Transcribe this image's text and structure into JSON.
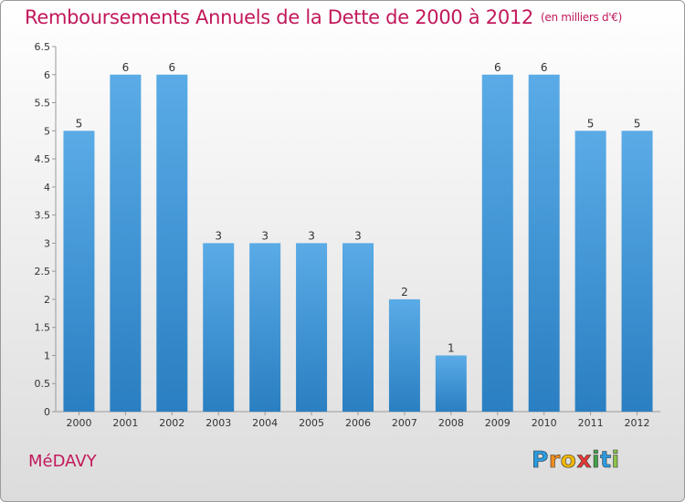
{
  "chart_data": {
    "type": "bar",
    "title": "Remboursements Annuels de la Dette de 2000 à 2012",
    "unit_label": "(en milliers d'€)",
    "categories": [
      "2000",
      "2001",
      "2002",
      "2003",
      "2004",
      "2005",
      "2006",
      "2007",
      "2008",
      "2009",
      "2010",
      "2011",
      "2012"
    ],
    "values": [
      5,
      6,
      6,
      3,
      3,
      3,
      3,
      2,
      1,
      6,
      6,
      5,
      5
    ],
    "data_labels": [
      "5",
      "6",
      "6",
      "3",
      "3",
      "3",
      "3",
      "2",
      "1",
      "6",
      "6",
      "5",
      "5"
    ],
    "yticks": [
      "0",
      "0.5",
      "1",
      "1.5",
      "2",
      "2.5",
      "3",
      "3.5",
      "4",
      "4.5",
      "5",
      "5.5",
      "6",
      "6.5"
    ],
    "ylim": [
      0,
      6.5
    ],
    "grid": false,
    "bar_color": "#3f93d6",
    "title_color": "#c2185b"
  },
  "footer": {
    "commune": "MéDAVY",
    "logo_letters": [
      "P",
      "r",
      "o",
      "x",
      "i",
      "t",
      "i"
    ],
    "logo_colors": [
      "#2b9be0",
      "#f28c1c",
      "#f2b705",
      "#e53935",
      "#43a047",
      "#2b9be0",
      "#8bc34a"
    ]
  }
}
